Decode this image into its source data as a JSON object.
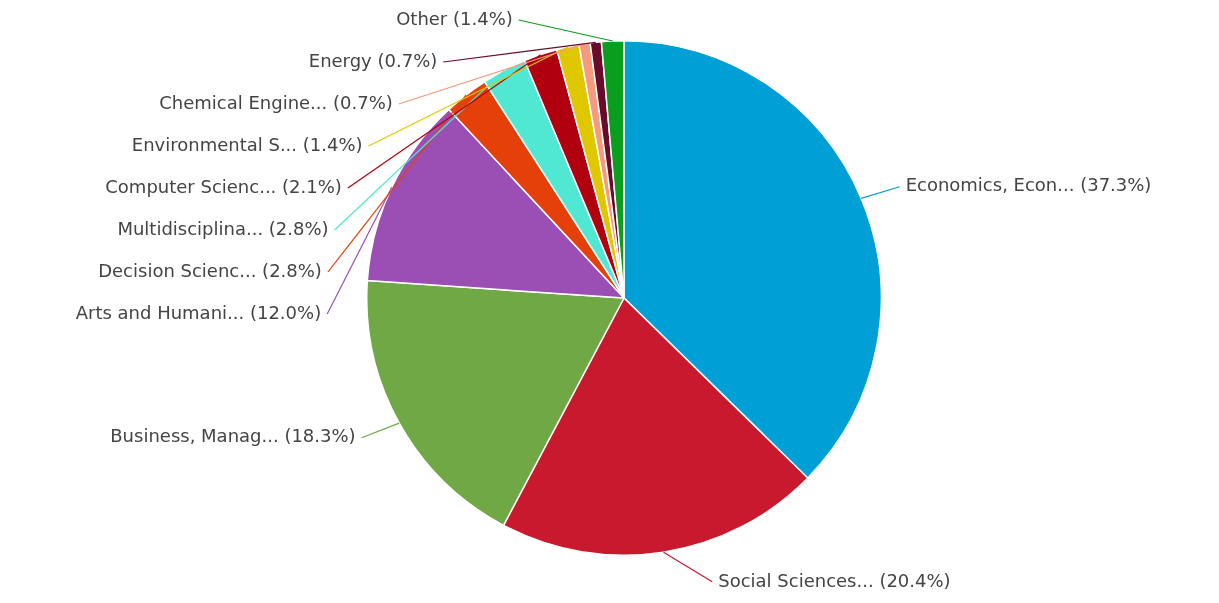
{
  "chart_data": {
    "type": "pie",
    "categories": [
      "Economics, Econ...",
      "Social Sciences...",
      "Business, Manag...",
      "Arts and Humani...",
      "Decision Scienc...",
      "Multidisciplina...",
      "Computer Scienc...",
      "Environmental S...",
      "Chemical Engine...",
      "Energy",
      "Other"
    ],
    "values": [
      37.3,
      20.4,
      18.3,
      12.0,
      2.8,
      2.8,
      2.1,
      1.4,
      0.7,
      0.7,
      1.4
    ],
    "value_labels": [
      "(37.3%)",
      "(20.4%)",
      "(18.3%)",
      "(12.0%)",
      "(2.8%)",
      "(2.8%)",
      "(2.1%)",
      "(1.4%)",
      "(0.7%)",
      "(0.7%)",
      "(1.4%)"
    ],
    "colors": [
      "#009fd6",
      "#c8192e",
      "#70a845",
      "#9b4fb5",
      "#e5400a",
      "#50e8d2",
      "#b0000f",
      "#e0c800",
      "#f59a7f",
      "#6b0b2b",
      "#0a9e1e"
    ],
    "legend": false
  }
}
